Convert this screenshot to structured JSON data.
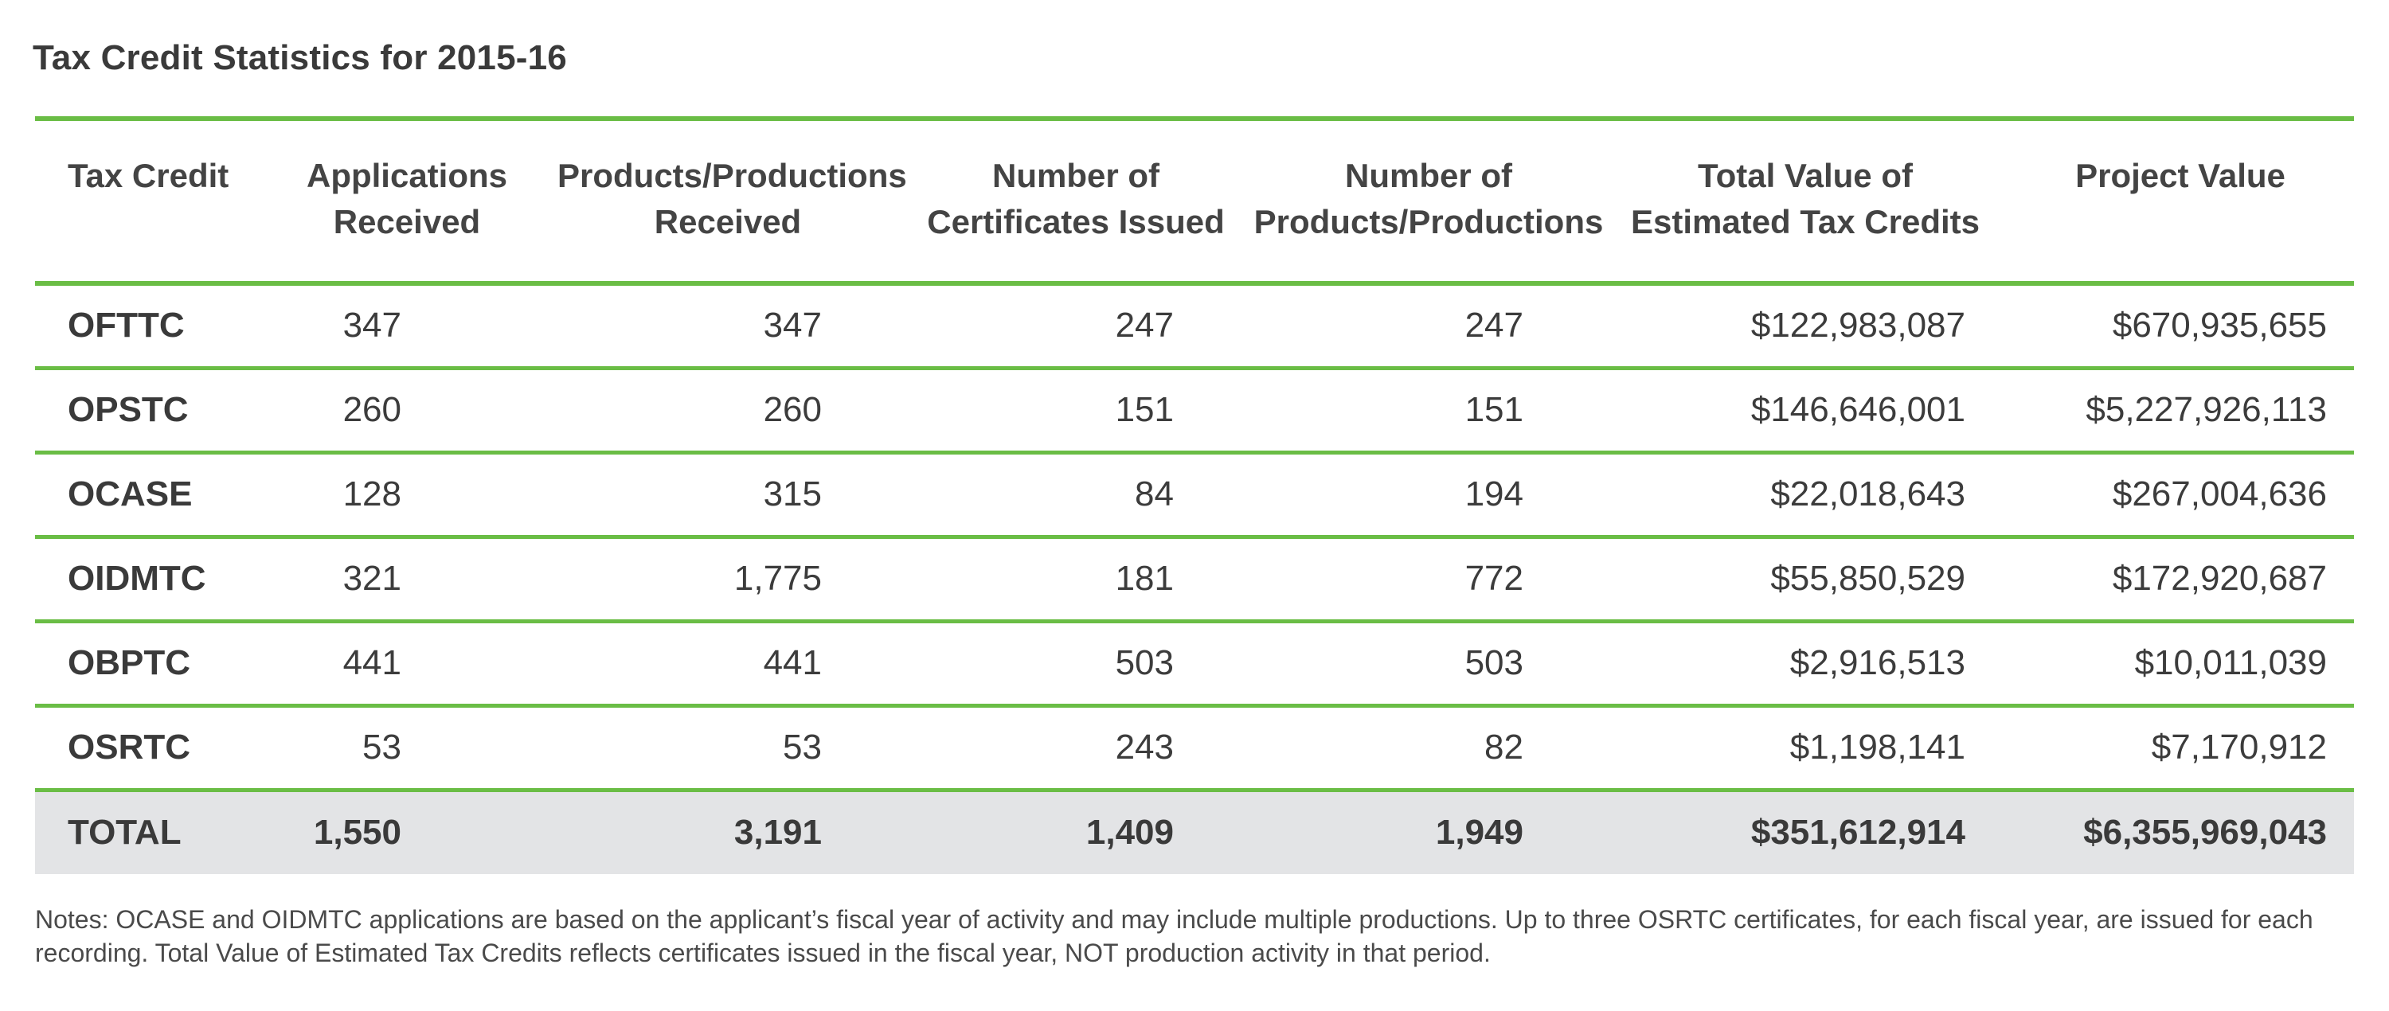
{
  "title": "Tax Credit Statistics for 2015-16",
  "colors": {
    "accent_green": "#6abd45",
    "total_row_bg": "#e3e4e6",
    "text": "#3c3c3c"
  },
  "table": {
    "headers": [
      "Tax Credit",
      "Applications Received",
      "Products/Productions Received",
      "Number of Certificates Issued",
      "Number of Products/Productions",
      "Total Value of Estimated Tax Credits",
      "Project Value"
    ],
    "rows": [
      [
        "OFTTC",
        "347",
        "347",
        "247",
        "247",
        "$122,983,087",
        "$670,935,655"
      ],
      [
        "OPSTC",
        "260",
        "260",
        "151",
        "151",
        "$146,646,001",
        "$5,227,926,113"
      ],
      [
        "OCASE",
        "128",
        "315",
        "84",
        "194",
        "$22,018,643",
        "$267,004,636"
      ],
      [
        "OIDMTC",
        "321",
        "1,775",
        "181",
        "772",
        "$55,850,529",
        "$172,920,687"
      ],
      [
        "OBPTC",
        "441",
        "441",
        "503",
        "503",
        "$2,916,513",
        "$10,011,039"
      ],
      [
        "OSRTC",
        "53",
        "53",
        "243",
        "82",
        "$1,198,141",
        "$7,170,912"
      ]
    ],
    "total": [
      "TOTAL",
      "1,550",
      "3,191",
      "1,409",
      "1,949",
      "$351,612,914",
      "$6,355,969,043"
    ]
  },
  "notes": "Notes: OCASE and OIDMTC applications are based on the applicant’s fiscal year of activity and may include multiple productions. Up to three OSRTC certificates, for each fiscal year, are issued for each recording. Total Value of Estimated Tax Credits reflects certificates issued in the fiscal year, NOT production activity in that period."
}
